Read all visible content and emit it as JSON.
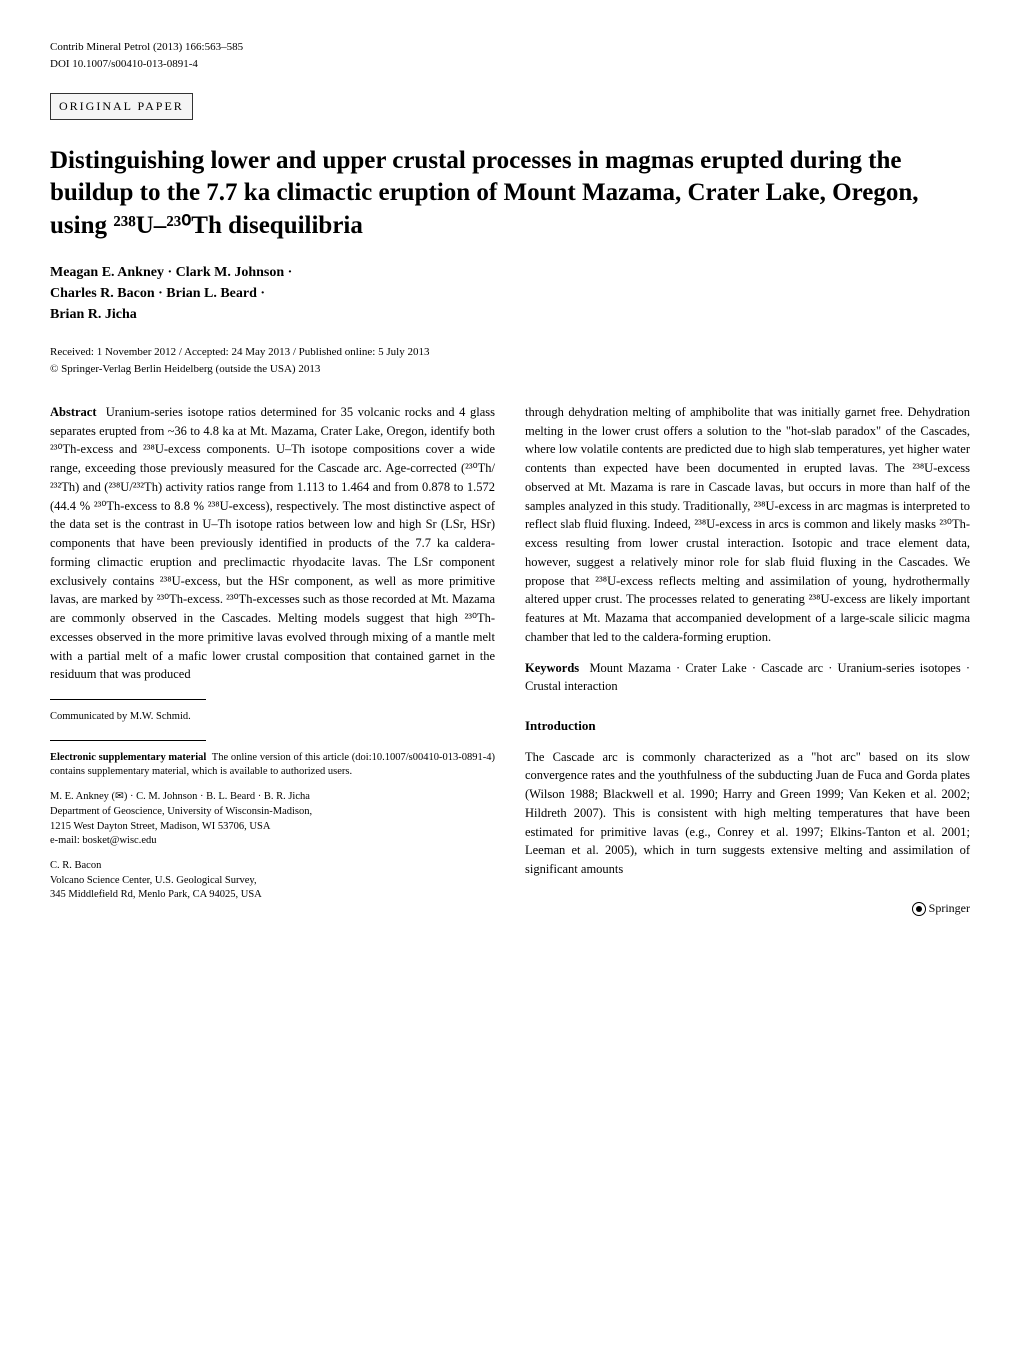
{
  "header": {
    "journal": "Contrib Mineral Petrol (2013) 166:563–585",
    "doi": "DOI 10.1007/s00410-013-0891-4",
    "paper_type": "ORIGINAL PAPER"
  },
  "title": "Distinguishing lower and upper crustal processes in magmas erupted during the buildup to the 7.7 ka climactic eruption of Mount Mazama, Crater Lake, Oregon, using ²³⁸U–²³⁰Th disequilibria",
  "authors": "Meagan E. Ankney · Clark M. Johnson · Charles R. Bacon · Brian L. Beard · Brian R. Jicha",
  "dates": "Received: 1 November 2012 / Accepted: 24 May 2013 / Published online: 5 July 2013",
  "copyright": "© Springer-Verlag Berlin Heidelberg (outside the USA) 2013",
  "abstract": {
    "label": "Abstract",
    "text": "Uranium-series isotope ratios determined for 35 volcanic rocks and 4 glass separates erupted from ~36 to 4.8 ka at Mt. Mazama, Crater Lake, Oregon, identify both ²³⁰Th-excess and ²³⁸U-excess components. U–Th isotope compositions cover a wide range, exceeding those previously measured for the Cascade arc. Age-corrected (²³⁰Th/²³²Th) and (²³⁸U/²³²Th) activity ratios range from 1.113 to 1.464 and from 0.878 to 1.572 (44.4 % ²³⁰Th-excess to 8.8 % ²³⁸U-excess), respectively. The most distinctive aspect of the data set is the contrast in U–Th isotope ratios between low and high Sr (LSr, HSr) components that have been previously identified in products of the 7.7 ka caldera-forming climactic eruption and preclimactic rhyodacite lavas. The LSr component exclusively contains ²³⁸U-excess, but the HSr component, as well as more primitive lavas, are marked by ²³⁰Th-excess. ²³⁰Th-excesses such as those recorded at Mt. Mazama are commonly observed in the Cascades. Melting models suggest that high ²³⁰Th-excesses observed in the more primitive lavas evolved through mixing of a mantle melt with a partial melt of a mafic lower crustal composition that contained garnet in the residuum that was produced"
  },
  "col2_para1": "through dehydration melting of amphibolite that was initially garnet free. Dehydration melting in the lower crust offers a solution to the \"hot-slab paradox\" of the Cascades, where low volatile contents are predicted due to high slab temperatures, yet higher water contents than expected have been documented in erupted lavas. The ²³⁸U-excess observed at Mt. Mazama is rare in Cascade lavas, but occurs in more than half of the samples analyzed in this study. Traditionally, ²³⁸U-excess in arc magmas is interpreted to reflect slab fluid fluxing. Indeed, ²³⁸U-excess in arcs is common and likely masks ²³⁰Th-excess resulting from lower crustal interaction. Isotopic and trace element data, however, suggest a relatively minor role for slab fluid fluxing in the Cascades. We propose that ²³⁸U-excess reflects melting and assimilation of young, hydrothermally altered upper crust. The processes related to generating ²³⁸U-excess are likely important features at Mt. Mazama that accompanied development of a large-scale silicic magma chamber that led to the caldera-forming eruption.",
  "keywords": {
    "label": "Keywords",
    "text": "Mount Mazama · Crater Lake · Cascade arc · Uranium-series isotopes · Crustal interaction"
  },
  "communicated": "Communicated by M.W. Schmid.",
  "supplementary": {
    "label": "Electronic supplementary material",
    "text": "The online version of this article (doi:10.1007/s00410-013-0891-4) contains supplementary material, which is available to authorized users."
  },
  "affiliations": {
    "aff1": "M. E. Ankney (✉) · C. M. Johnson · B. L. Beard · B. R. Jicha\nDepartment of Geoscience, University of Wisconsin-Madison, 1215 West Dayton Street, Madison, WI 53706, USA\ne-mail: bosket@wisc.edu",
    "aff2": "C. R. Bacon\nVolcano Science Center, U.S. Geological Survey, 345 Middlefield Rd, Menlo Park, CA 94025, USA"
  },
  "introduction": {
    "heading": "Introduction",
    "text": "The Cascade arc is commonly characterized as a \"hot arc\" based on its slow convergence rates and the youthfulness of the subducting Juan de Fuca and Gorda plates (Wilson 1988; Blackwell et al. 1990; Harry and Green 1999; Van Keken et al. 2002; Hildreth 2007). This is consistent with high melting temperatures that have been estimated for primitive lavas (e.g., Conrey et al. 1997; Elkins-Tanton et al. 2001; Leeman et al. 2005), which in turn suggests extensive melting and assimilation of significant amounts"
  },
  "publisher": "Springer",
  "style": {
    "body_width": 1020,
    "body_padding": "40px 50px",
    "body_font": "Georgia, Times New Roman, serif",
    "body_fontsize": 13,
    "title_fontsize": 25,
    "title_fontweight": "bold",
    "authors_fontsize": 14,
    "col_fontsize": 12.5,
    "footnote_fontsize": 10.5,
    "header_fontsize": 11,
    "box_bg": "#f5f5f5",
    "box_border": "#333333",
    "text_color": "#000000",
    "bg_color": "#ffffff",
    "column_gap": 30
  }
}
